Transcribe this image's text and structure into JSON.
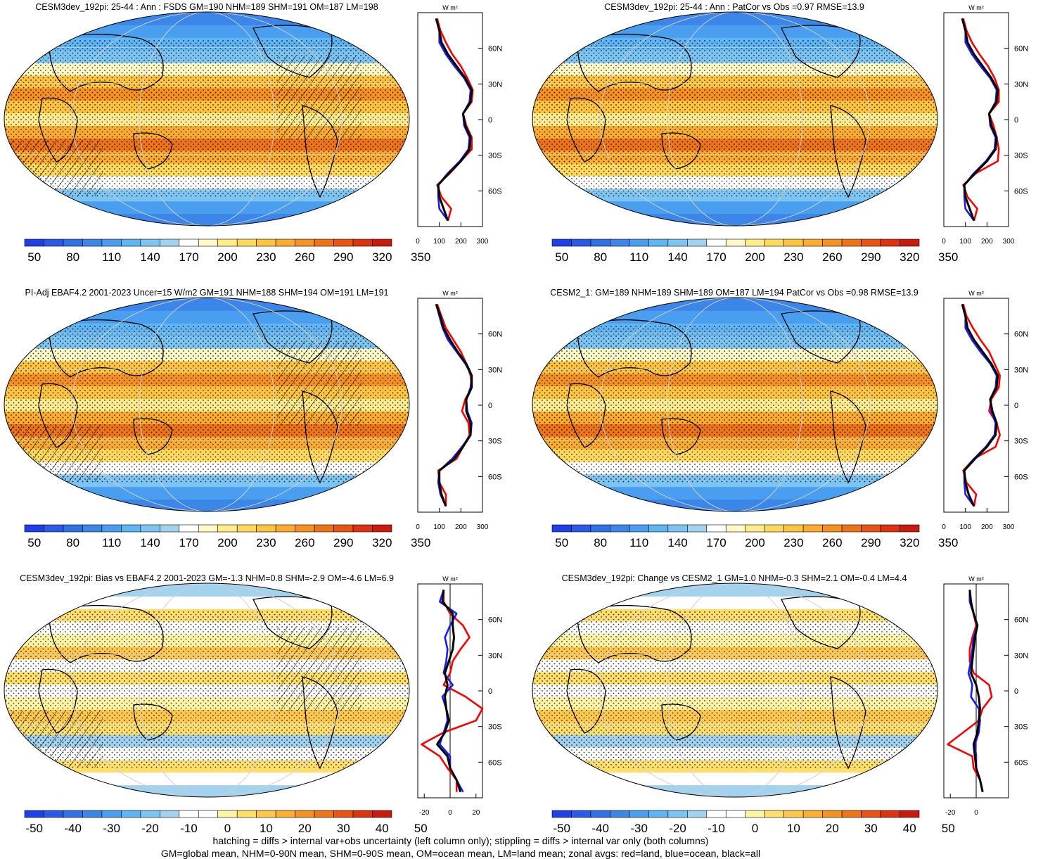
{
  "colors": {
    "abs_scale": [
      "#1f3fe8",
      "#2a5ae8",
      "#3170e6",
      "#3c86ea",
      "#4a9ef0",
      "#5fb4f3",
      "#7cc4f1",
      "#a2d2ee",
      "#ffffff",
      "#fff9c8",
      "#ffec8a",
      "#ffd95c",
      "#ffc43d",
      "#fbab2e",
      "#f59022",
      "#ee741a",
      "#e75414",
      "#dd3410",
      "#c81a0e"
    ],
    "diff_scale": [
      "#1f3fe8",
      "#2a5ae8",
      "#3170e6",
      "#3c86ea",
      "#4a9ef0",
      "#5fb4f3",
      "#7cc4f1",
      "#a2d2ee",
      "#ffffff",
      "#ffffff",
      "#fff3a6",
      "#ffdf6a",
      "#ffc84a",
      "#fbae30",
      "#f59022",
      "#ee741a",
      "#e75414",
      "#dd3410",
      "#c81a0e"
    ],
    "land_line": "#ff0000",
    "ocean_line": "#1a1aff",
    "all_line": "#000000",
    "missing": "#c8c8c8"
  },
  "caption": {
    "line1": "hatching = diffs > internal var+obs uncertainty (left column only); stippling = diffs > internal var only (both columns)",
    "line2": "GM=global mean, NHM=0-90N mean, SHM=0-90S mean, OM=ocean mean, LM=land mean; zonal avgs: red=land, blue=ocean, black=all"
  },
  "chart_data": [
    {
      "type": "heatmap",
      "panel": "a",
      "title": "CESM3dev_192pi: 25-44 : Ann : FSDS GM=190 NHM=189 SHM=191 OM=187 LM=198",
      "colorbar_labels": [
        "50",
        "80",
        "110",
        "140",
        "170",
        "200",
        "230",
        "260",
        "290",
        "320",
        "350"
      ],
      "scale": "abs",
      "zonal": {
        "units": "W m²",
        "xlim": [
          0,
          300
        ],
        "xticks": [
          "0",
          "100",
          "200",
          "300"
        ],
        "ylim": [
          -90,
          90
        ],
        "yticks": [
          {
            "lat": 60,
            "label": "60N"
          },
          {
            "lat": 30,
            "label": "30N"
          },
          {
            "lat": 0,
            "label": "0"
          },
          {
            "lat": -30,
            "label": "30S"
          },
          {
            "lat": -60,
            "label": "60S"
          }
        ],
        "lat": [
          -85,
          -75,
          -65,
          -55,
          -45,
          -35,
          -25,
          -15,
          -5,
          5,
          15,
          25,
          35,
          45,
          55,
          65,
          75,
          85
        ],
        "land": [
          140,
          155,
          110,
          90,
          150,
          200,
          250,
          250,
          225,
          210,
          250,
          255,
          230,
          200,
          160,
          130,
          105,
          90
        ],
        "ocean": [
          140,
          100,
          95,
          95,
          140,
          195,
          235,
          240,
          215,
          210,
          240,
          245,
          215,
          170,
          130,
          100,
          100,
          85
        ],
        "all": [
          140,
          120,
          100,
          95,
          145,
          200,
          240,
          245,
          220,
          210,
          245,
          250,
          220,
          180,
          140,
          110,
          100,
          85
        ]
      }
    },
    {
      "type": "heatmap",
      "panel": "b",
      "title": "CESM3dev_192pi: 25-44 : Ann : PatCor vs Obs =0.97 RMSE=13.9",
      "colorbar_labels": [
        "50",
        "80",
        "110",
        "140",
        "170",
        "200",
        "230",
        "260",
        "290",
        "320",
        "350"
      ],
      "scale": "abs",
      "zonal": {
        "units": "W m²",
        "xlim": [
          0,
          300
        ],
        "xticks": [
          "0",
          "100",
          "200",
          "300"
        ],
        "ylim": [
          -90,
          90
        ],
        "yticks": [
          {
            "lat": 60,
            "label": "60N"
          },
          {
            "lat": 30,
            "label": "30N"
          },
          {
            "lat": 0,
            "label": "0"
          },
          {
            "lat": -30,
            "label": "30S"
          },
          {
            "lat": -60,
            "label": "60S"
          }
        ],
        "lat": [
          -85,
          -75,
          -65,
          -55,
          -45,
          -35,
          -25,
          -15,
          -5,
          5,
          15,
          25,
          35,
          45,
          55,
          65,
          75,
          85
        ],
        "land": [
          140,
          155,
          110,
          90,
          150,
          250,
          255,
          245,
          230,
          210,
          255,
          255,
          235,
          205,
          165,
          130,
          105,
          90
        ],
        "ocean": [
          140,
          100,
          95,
          95,
          140,
          195,
          235,
          240,
          215,
          210,
          240,
          245,
          215,
          170,
          130,
          100,
          100,
          85
        ],
        "all": [
          140,
          120,
          100,
          95,
          145,
          200,
          240,
          245,
          220,
          210,
          245,
          250,
          220,
          180,
          140,
          110,
          100,
          85
        ]
      }
    },
    {
      "type": "heatmap",
      "panel": "c",
      "title": "PI-Adj EBAF4.2 2001-2023 Uncer=15 W/m2 GM=191 NHM=188 SHM=194 OM=191 LM=191",
      "colorbar_labels": [
        "50",
        "80",
        "110",
        "140",
        "170",
        "200",
        "230",
        "260",
        "290",
        "320",
        "350"
      ],
      "scale": "abs",
      "zonal": {
        "units": "W m²",
        "xlim": [
          0,
          300
        ],
        "xticks": [
          "0",
          "100",
          "200",
          "300"
        ],
        "ylim": [
          -90,
          90
        ],
        "yticks": [
          {
            "lat": 60,
            "label": "60N"
          },
          {
            "lat": 30,
            "label": "30N"
          },
          {
            "lat": 0,
            "label": "0"
          },
          {
            "lat": -30,
            "label": "30S"
          },
          {
            "lat": -60,
            "label": "60S"
          }
        ],
        "lat": [
          -85,
          -75,
          -65,
          -55,
          -45,
          -35,
          -25,
          -15,
          -5,
          5,
          15,
          25,
          35,
          45,
          55,
          65,
          75,
          85
        ],
        "land": [
          130,
          130,
          100,
          95,
          180,
          210,
          240,
          235,
          205,
          220,
          250,
          245,
          225,
          200,
          165,
          130,
          110,
          90
        ],
        "ocean": [
          130,
          105,
          95,
          100,
          160,
          205,
          245,
          250,
          230,
          225,
          245,
          250,
          220,
          180,
          140,
          115,
          100,
          85
        ],
        "all": [
          130,
          110,
          100,
          100,
          170,
          210,
          245,
          245,
          225,
          225,
          250,
          250,
          225,
          185,
          150,
          120,
          105,
          85
        ]
      }
    },
    {
      "type": "heatmap",
      "panel": "d",
      "title": "CESM2_1: GM=189 NHM=189 SHM=189 OM=187 LM=194 PatCor vs Obs =0.98 RMSE=13.9",
      "colorbar_labels": [
        "50",
        "80",
        "110",
        "140",
        "170",
        "200",
        "230",
        "260",
        "290",
        "320",
        "350"
      ],
      "scale": "abs",
      "zonal": {
        "units": "W m²",
        "xlim": [
          0,
          300
        ],
        "xticks": [
          "0",
          "100",
          "200",
          "300"
        ],
        "ylim": [
          -90,
          90
        ],
        "yticks": [
          {
            "lat": 60,
            "label": "60N"
          },
          {
            "lat": 30,
            "label": "30N"
          },
          {
            "lat": 0,
            "label": "0"
          },
          {
            "lat": -30,
            "label": "30S"
          },
          {
            "lat": -60,
            "label": "60S"
          }
        ],
        "lat": [
          -85,
          -75,
          -65,
          -55,
          -45,
          -35,
          -25,
          -15,
          -5,
          5,
          15,
          25,
          35,
          45,
          55,
          65,
          75,
          85
        ],
        "land": [
          140,
          150,
          105,
          90,
          140,
          240,
          260,
          245,
          210,
          220,
          255,
          260,
          235,
          210,
          170,
          135,
          105,
          90
        ],
        "ocean": [
          140,
          100,
          95,
          95,
          140,
          195,
          235,
          240,
          220,
          215,
          240,
          245,
          215,
          170,
          130,
          100,
          100,
          85
        ],
        "all": [
          140,
          115,
          100,
          95,
          145,
          200,
          240,
          245,
          225,
          215,
          245,
          250,
          220,
          180,
          140,
          110,
          100,
          85
        ]
      }
    },
    {
      "type": "heatmap",
      "panel": "e",
      "title": "CESM3dev_192pi: Bias vs EBAF4.2 2001-2023 GM=-1.3 NHM=0.8 SHM=-2.9 OM=-4.6 LM=6.9",
      "colorbar_labels": [
        "-50",
        "-40",
        "-30",
        "-20",
        "-10",
        "0",
        "10",
        "20",
        "30",
        "40",
        "50"
      ],
      "scale": "diff",
      "zonal": {
        "units": "W m²",
        "xlim": [
          -25,
          25
        ],
        "xticks": [
          "-20",
          "0",
          "20"
        ],
        "ylim": [
          -90,
          90
        ],
        "yticks": [
          {
            "lat": 60,
            "label": "60N"
          },
          {
            "lat": 30,
            "label": "30N"
          },
          {
            "lat": 0,
            "label": "0"
          },
          {
            "lat": -30,
            "label": "30S"
          },
          {
            "lat": -60,
            "label": "60S"
          }
        ],
        "lat": [
          -85,
          -75,
          -65,
          -55,
          -45,
          -35,
          -25,
          -15,
          -5,
          5,
          15,
          25,
          35,
          45,
          55,
          65,
          75,
          85
        ],
        "land": [
          5,
          5,
          -2,
          -8,
          -22,
          -5,
          20,
          25,
          12,
          -5,
          0,
          2,
          8,
          15,
          10,
          0,
          -5,
          -5
        ],
        "ocean": [
          10,
          5,
          0,
          0,
          -8,
          -5,
          -2,
          -3,
          -6,
          2,
          -5,
          -3,
          -2,
          -4,
          0,
          5,
          -8,
          -5
        ],
        "all": [
          8,
          5,
          0,
          -2,
          -10,
          -4,
          -1,
          -3,
          -4,
          -2,
          -4,
          -1,
          2,
          3,
          2,
          2,
          -6,
          -5
        ]
      }
    },
    {
      "type": "heatmap",
      "panel": "f",
      "title": "CESM3dev_192pi: Change vs CESM2_1 GM=1.0 NHM=-0.3 SHM=2.1 OM=-0.4 LM=4.4",
      "colorbar_labels": [
        "-50",
        "-40",
        "-30",
        "-20",
        "-10",
        "0",
        "10",
        "20",
        "30",
        "40",
        "50"
      ],
      "scale": "diff",
      "zonal": {
        "units": "W m²",
        "xlim": [
          -25,
          25
        ],
        "xticks": [
          "-20",
          "0"
        ],
        "ylim": [
          -90,
          90
        ],
        "yticks": [
          {
            "lat": 60,
            "label": "60N"
          },
          {
            "lat": 30,
            "label": "30N"
          },
          {
            "lat": 0,
            "label": "0"
          },
          {
            "lat": -30,
            "label": "30S"
          },
          {
            "lat": -60,
            "label": "60S"
          }
        ],
        "lat": [
          -85,
          -75,
          -65,
          -55,
          -45,
          -35,
          -25,
          -15,
          -5,
          5,
          15,
          25,
          35,
          45,
          55,
          65,
          75,
          85
        ],
        "land": [
          5,
          3,
          -2,
          -3,
          -22,
          -10,
          2,
          5,
          12,
          10,
          -2,
          -5,
          -5,
          -3,
          0,
          -2,
          -4,
          -5
        ],
        "ocean": [
          5,
          3,
          0,
          0,
          -1,
          2,
          3,
          2,
          -4,
          -3,
          -6,
          -4,
          -3,
          -2,
          1,
          -2,
          -5,
          -5
        ],
        "all": [
          5,
          3,
          0,
          -1,
          -2,
          1,
          2,
          3,
          2,
          0,
          -4,
          -3,
          -2,
          -1,
          1,
          -2,
          -4,
          -5
        ]
      }
    }
  ]
}
